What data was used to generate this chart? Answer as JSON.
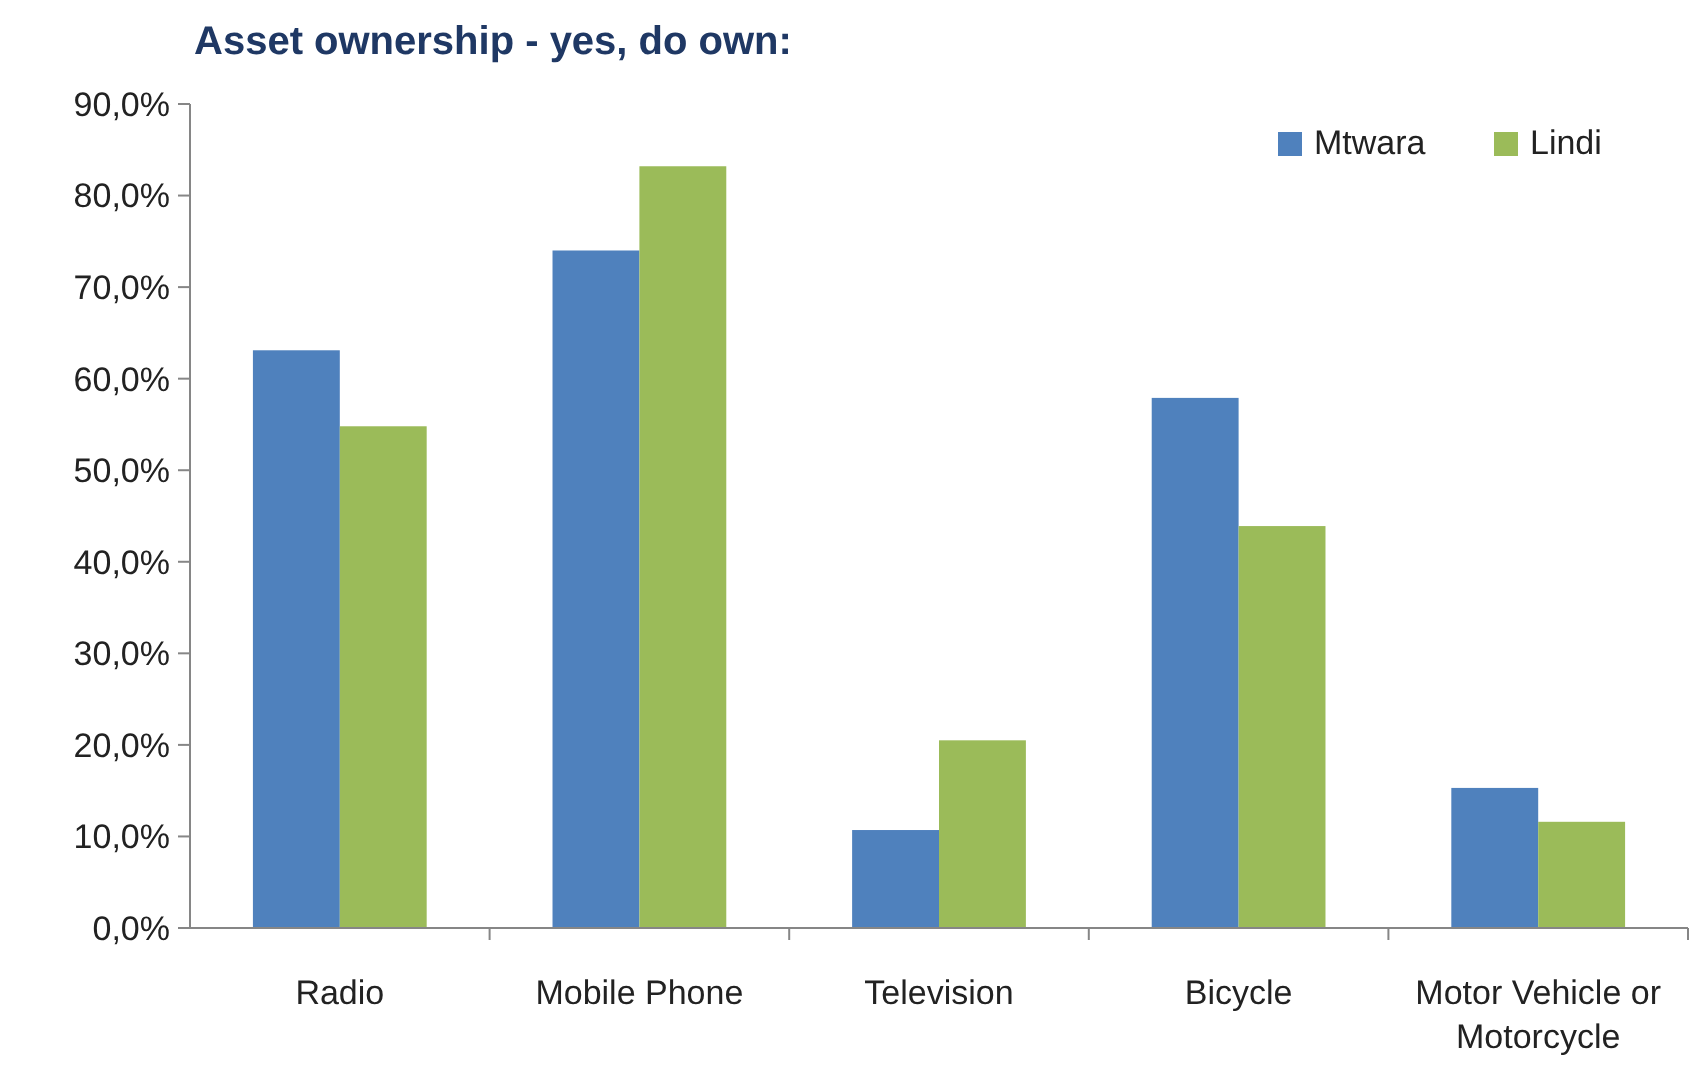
{
  "chart_data": {
    "type": "bar",
    "title": "Asset ownership - yes, do own:",
    "categories": [
      "Radio",
      "Mobile Phone",
      "Television",
      "Bicycle",
      "Motor Vehicle or Motorcycle"
    ],
    "series": [
      {
        "name": "Mtwara",
        "color": "#4f81bd",
        "values": [
          63.1,
          74.0,
          10.7,
          57.9,
          15.3
        ]
      },
      {
        "name": "Lindi",
        "color": "#9bbb59",
        "values": [
          54.8,
          83.2,
          20.5,
          43.9,
          11.6
        ]
      }
    ],
    "ylim": [
      0,
      90
    ],
    "yticks": [
      {
        "value": 0,
        "label": "0,0%"
      },
      {
        "value": 10,
        "label": "10,0%"
      },
      {
        "value": 20,
        "label": "20,0%"
      },
      {
        "value": 30,
        "label": "30,0%"
      },
      {
        "value": 40,
        "label": "40,0%"
      },
      {
        "value": 50,
        "label": "50,0%"
      },
      {
        "value": 60,
        "label": "60,0%"
      },
      {
        "value": 70,
        "label": "70,0%"
      },
      {
        "value": 80,
        "label": "80,0%"
      },
      {
        "value": 90,
        "label": "90,0%"
      }
    ],
    "grid": false,
    "legend": "top right"
  }
}
